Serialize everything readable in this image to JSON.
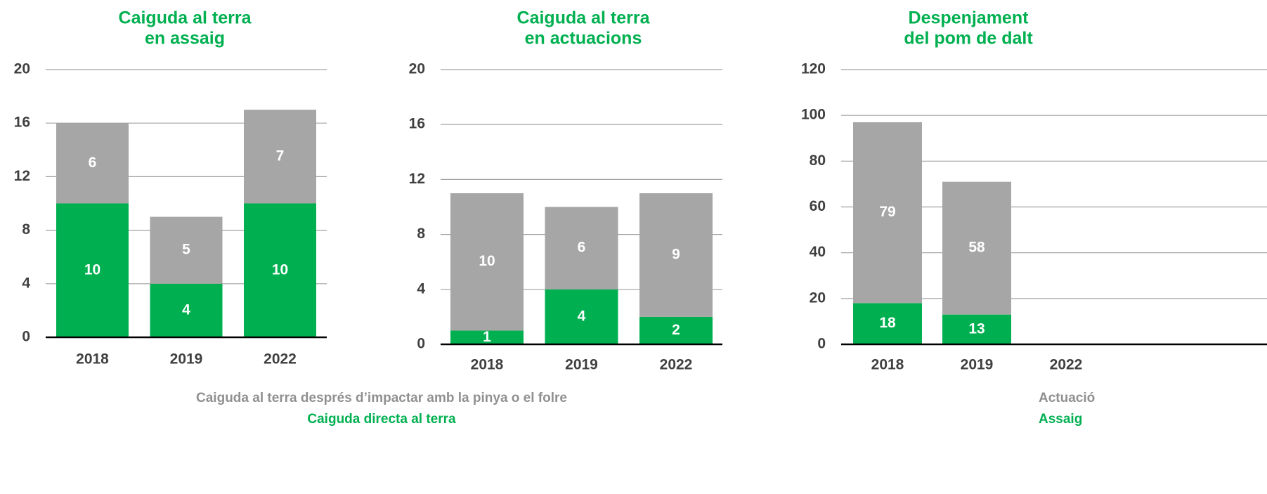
{
  "chart_data": [
    {
      "type": "bar",
      "stacked": true,
      "title": [
        "Caiguda al terra",
        "en assaig"
      ],
      "categories": [
        "2018",
        "2019",
        "2022"
      ],
      "series": [
        {
          "name": "Caiguda directa al terra",
          "color": "#00b050",
          "values": [
            10,
            4,
            10
          ]
        },
        {
          "name": "Caiguda al terra després d’impactar amb la pinya o el folre",
          "color": "#a6a6a6",
          "values": [
            6,
            5,
            7
          ]
        }
      ],
      "ylim": [
        0,
        20
      ],
      "yticks": [
        0,
        4,
        8,
        12,
        16,
        20
      ],
      "grid": true
    },
    {
      "type": "bar",
      "stacked": true,
      "title": [
        "Caiguda al terra",
        "en actuacions"
      ],
      "categories": [
        "2018",
        "2019",
        "2022"
      ],
      "series": [
        {
          "color": "#00b050",
          "values": [
            1,
            4,
            2
          ]
        },
        {
          "color": "#a6a6a6",
          "values": [
            10,
            6,
            9
          ]
        }
      ],
      "ylim": [
        0,
        20
      ],
      "yticks": [
        0,
        4,
        8,
        12,
        16,
        20
      ],
      "grid": true
    },
    {
      "type": "bar",
      "stacked": true,
      "title": [
        "Despenjament",
        "del pom de dalt"
      ],
      "categories": [
        "2018",
        "2019",
        "2022"
      ],
      "series": [
        {
          "name": "Assaig",
          "color": "#00b050",
          "values": [
            18,
            13,
            null
          ]
        },
        {
          "name": "Actuació",
          "color": "#a6a6a6",
          "values": [
            79,
            58,
            null
          ]
        }
      ],
      "ylim": [
        0,
        120
      ],
      "yticks": [
        0,
        20,
        40,
        60,
        80,
        100,
        120
      ],
      "grid": true
    }
  ]
}
